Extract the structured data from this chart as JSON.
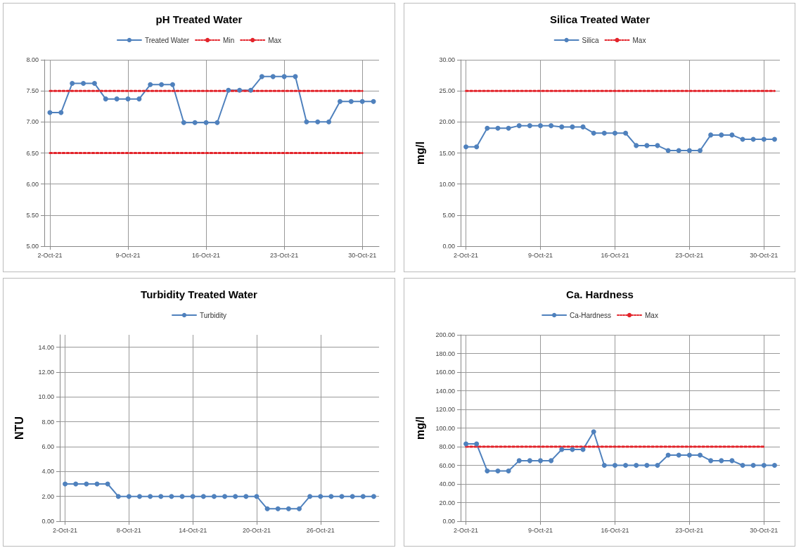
{
  "chart_data": [
    {
      "type": "line",
      "title": "pH Treated Water",
      "legend": "top",
      "grid": true,
      "marker": "circle",
      "x": [
        "--10-02",
        "--10-03",
        "--10-04",
        "--10-05",
        "--10-06",
        "--10-07",
        "--10-08",
        "--10-09",
        "--10-10",
        "--10-11",
        "--10-12",
        "--10-13",
        "--10-14",
        "--10-15",
        "--10-16",
        "--10-17",
        "--10-18",
        "--10-19",
        "--10-20",
        "--10-21",
        "--10-22",
        "--10-23",
        "--10-24",
        "--10-25",
        "--10-26",
        "--10-27",
        "--10-28",
        "--10-29",
        "--10-30",
        "--10-31"
      ],
      "xlim": [
        "--10-01T12:00",
        "--10-31T12:00"
      ],
      "xticks": [
        {
          "value": "--10-02",
          "label": "2-Oct-21"
        },
        {
          "value": "--10-09",
          "label": "9-Oct-21"
        },
        {
          "value": "--10-16",
          "label": "16-Oct-21"
        },
        {
          "value": "--10-23",
          "label": "23-Oct-21"
        },
        {
          "value": "--10-30",
          "label": "30-Oct-21"
        }
      ],
      "ylim": [
        5,
        8
      ],
      "yticks": [
        {
          "value": 5,
          "label": "5.00"
        },
        {
          "value": 5.5,
          "label": "5.50"
        },
        {
          "value": 6,
          "label": "6.00"
        },
        {
          "value": 6.5,
          "label": "6.50"
        },
        {
          "value": 7,
          "label": "7.00"
        },
        {
          "value": 7.5,
          "label": "7.50"
        },
        {
          "value": 8,
          "label": "8.00"
        }
      ],
      "series": [
        {
          "name": "Treated Water",
          "color": "#4f81bd",
          "values": [
            7.15,
            7.15,
            7.62,
            7.62,
            7.62,
            7.37,
            7.37,
            7.37,
            7.37,
            7.6,
            7.6,
            7.6,
            6.99,
            6.99,
            6.99,
            6.99,
            7.51,
            7.51,
            7.51,
            7.73,
            7.73,
            7.73,
            7.73,
            7.0,
            7.0,
            7.0,
            7.33,
            7.33,
            7.33,
            7.33
          ]
        },
        {
          "name": "Min",
          "color": "#e3242b",
          "line_style": "dotted",
          "marker": "none",
          "values": [
            6.5,
            6.5,
            6.5,
            6.5,
            6.5,
            6.5,
            6.5,
            6.5,
            6.5,
            6.5,
            6.5,
            6.5,
            6.5,
            6.5,
            6.5,
            6.5,
            6.5,
            6.5,
            6.5,
            6.5,
            6.5,
            6.5,
            6.5,
            6.5,
            6.5,
            6.5,
            6.5,
            6.5,
            6.5,
            null
          ]
        },
        {
          "name": "Max",
          "color": "#e3242b",
          "line_style": "dotted",
          "marker": "none",
          "values": [
            7.5,
            7.5,
            7.5,
            7.5,
            7.5,
            7.5,
            7.5,
            7.5,
            7.5,
            7.5,
            7.5,
            7.5,
            7.5,
            7.5,
            7.5,
            7.5,
            7.5,
            7.5,
            7.5,
            7.5,
            7.5,
            7.5,
            7.5,
            7.5,
            7.5,
            7.5,
            7.5,
            7.5,
            7.5,
            null
          ]
        }
      ]
    },
    {
      "type": "line",
      "title": "Silica Treated Water",
      "ylabel": "mg/l",
      "legend": "top",
      "grid": true,
      "marker": "circle",
      "x": [
        "--10-02",
        "--10-03",
        "--10-04",
        "--10-05",
        "--10-06",
        "--10-07",
        "--10-08",
        "--10-09",
        "--10-10",
        "--10-11",
        "--10-12",
        "--10-13",
        "--10-14",
        "--10-15",
        "--10-16",
        "--10-17",
        "--10-18",
        "--10-19",
        "--10-20",
        "--10-21",
        "--10-22",
        "--10-23",
        "--10-24",
        "--10-25",
        "--10-26",
        "--10-27",
        "--10-28",
        "--10-29",
        "--10-30",
        "--10-31"
      ],
      "xlim": [
        "--10-01T12:00",
        "--10-31T12:00"
      ],
      "xticks": [
        {
          "value": "--10-02",
          "label": "2-Oct-21"
        },
        {
          "value": "--10-09",
          "label": "9-Oct-21"
        },
        {
          "value": "--10-16",
          "label": "16-Oct-21"
        },
        {
          "value": "--10-23",
          "label": "23-Oct-21"
        },
        {
          "value": "--10-30",
          "label": "30-Oct-21"
        }
      ],
      "ylim": [
        0,
        30
      ],
      "yticks": [
        {
          "value": 0,
          "label": "0.00"
        },
        {
          "value": 5,
          "label": "5.00"
        },
        {
          "value": 10,
          "label": "10.00"
        },
        {
          "value": 15,
          "label": "15.00"
        },
        {
          "value": 20,
          "label": "20.00"
        },
        {
          "value": 25,
          "label": "25.00"
        },
        {
          "value": 30,
          "label": "30.00"
        }
      ],
      "series": [
        {
          "name": "Silica",
          "color": "#4f81bd",
          "values": [
            16.0,
            16.0,
            19.0,
            19.0,
            19.0,
            19.4,
            19.4,
            19.4,
            19.4,
            19.2,
            19.2,
            19.2,
            18.2,
            18.2,
            18.2,
            18.2,
            16.2,
            16.2,
            16.2,
            15.4,
            15.4,
            15.4,
            15.4,
            17.9,
            17.9,
            17.9,
            17.2,
            17.2,
            17.2,
            17.2
          ]
        },
        {
          "name": "Max",
          "color": "#e3242b",
          "line_style": "dotted",
          "marker": "none",
          "values": [
            25,
            25,
            25,
            25,
            25,
            25,
            25,
            25,
            25,
            25,
            25,
            25,
            25,
            25,
            25,
            25,
            25,
            25,
            25,
            25,
            25,
            25,
            25,
            25,
            25,
            25,
            25,
            25,
            25,
            25
          ]
        }
      ]
    },
    {
      "type": "line",
      "title": "Turbidity Treated Water",
      "ylabel": "NTU",
      "legend": "top",
      "grid": true,
      "marker": "circle",
      "x": [
        "--10-02",
        "--10-03",
        "--10-04",
        "--10-05",
        "--10-06",
        "--10-07",
        "--10-08",
        "--10-09",
        "--10-10",
        "--10-11",
        "--10-12",
        "--10-13",
        "--10-14",
        "--10-15",
        "--10-16",
        "--10-17",
        "--10-18",
        "--10-19",
        "--10-20",
        "--10-21",
        "--10-22",
        "--10-23",
        "--10-24",
        "--10-25",
        "--10-26",
        "--10-27",
        "--10-28",
        "--10-29",
        "--10-30",
        "--10-31"
      ],
      "xlim": [
        "--10-01T12:00",
        "--10-31T12:00"
      ],
      "xticks": [
        {
          "value": "--10-02",
          "label": "2-Oct-21"
        },
        {
          "value": "--10-08",
          "label": "8-Oct-21"
        },
        {
          "value": "--10-14",
          "label": "14-Oct-21"
        },
        {
          "value": "--10-20",
          "label": "20-Oct-21"
        },
        {
          "value": "--10-26",
          "label": "26-Oct-21"
        }
      ],
      "ylim": [
        0,
        15
      ],
      "yticks": [
        {
          "value": 0,
          "label": "0.00"
        },
        {
          "value": 2,
          "label": "2.00"
        },
        {
          "value": 4,
          "label": "4.00"
        },
        {
          "value": 6,
          "label": "6.00"
        },
        {
          "value": 8,
          "label": "8.00"
        },
        {
          "value": 10,
          "label": "10.00"
        },
        {
          "value": 12,
          "label": "12.00"
        },
        {
          "value": 14,
          "label": "14.00"
        }
      ],
      "series": [
        {
          "name": "Turbidity",
          "color": "#4f81bd",
          "values": [
            3,
            3,
            3,
            3,
            3,
            2,
            2,
            2,
            2,
            2,
            2,
            2,
            2,
            2,
            2,
            2,
            2,
            2,
            2,
            1,
            1,
            1,
            1,
            2,
            2,
            2,
            2,
            2,
            2,
            2
          ]
        }
      ]
    },
    {
      "type": "line",
      "title": "Ca. Hardness",
      "ylabel": "mg/l",
      "legend": "top",
      "grid": true,
      "marker": "circle",
      "x": [
        "--10-02",
        "--10-03",
        "--10-04",
        "--10-05",
        "--10-06",
        "--10-07",
        "--10-08",
        "--10-09",
        "--10-10",
        "--10-11",
        "--10-12",
        "--10-13",
        "--10-14",
        "--10-15",
        "--10-16",
        "--10-17",
        "--10-18",
        "--10-19",
        "--10-20",
        "--10-21",
        "--10-22",
        "--10-23",
        "--10-24",
        "--10-25",
        "--10-26",
        "--10-27",
        "--10-28",
        "--10-29",
        "--10-30",
        "--10-31"
      ],
      "xlim": [
        "--10-01T12:00",
        "--10-31T12:00"
      ],
      "xticks": [
        {
          "value": "--10-02",
          "label": "2-Oct-21"
        },
        {
          "value": "--10-09",
          "label": "9-Oct-21"
        },
        {
          "value": "--10-16",
          "label": "16-Oct-21"
        },
        {
          "value": "--10-23",
          "label": "23-Oct-21"
        },
        {
          "value": "--10-30",
          "label": "30-Oct-21"
        }
      ],
      "ylim": [
        0,
        200
      ],
      "yticks": [
        {
          "value": 0,
          "label": "0.00"
        },
        {
          "value": 20,
          "label": "20.00"
        },
        {
          "value": 40,
          "label": "40.00"
        },
        {
          "value": 60,
          "label": "60.00"
        },
        {
          "value": 80,
          "label": "80.00"
        },
        {
          "value": 100,
          "label": "100.00"
        },
        {
          "value": 120,
          "label": "120.00"
        },
        {
          "value": 140,
          "label": "140.00"
        },
        {
          "value": 160,
          "label": "160.00"
        },
        {
          "value": 180,
          "label": "180.00"
        },
        {
          "value": 200,
          "label": "200.00"
        }
      ],
      "series": [
        {
          "name": "Ca-Hardness",
          "color": "#4f81bd",
          "values": [
            83,
            83,
            54,
            54,
            54,
            65,
            65,
            65,
            65,
            77,
            77,
            77,
            96,
            60,
            60,
            60,
            60,
            60,
            60,
            71,
            71,
            71,
            71,
            65,
            65,
            65,
            60,
            60,
            60,
            60
          ]
        },
        {
          "name": "Max",
          "color": "#e3242b",
          "line_style": "dotted",
          "marker": "none",
          "values": [
            80,
            80,
            80,
            80,
            80,
            80,
            80,
            80,
            80,
            80,
            80,
            80,
            80,
            80,
            80,
            80,
            80,
            80,
            80,
            80,
            80,
            80,
            80,
            80,
            80,
            80,
            80,
            80,
            80,
            null
          ]
        }
      ]
    }
  ]
}
